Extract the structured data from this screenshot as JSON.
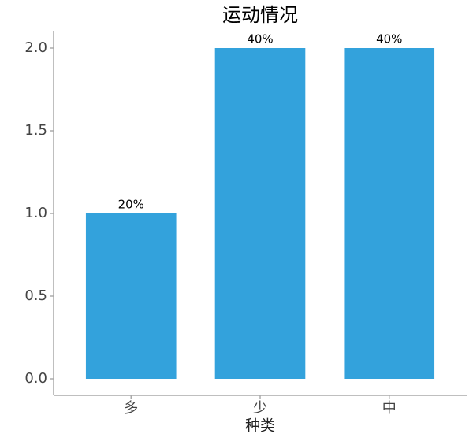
{
  "chart_data": {
    "type": "bar",
    "title": "运动情况",
    "x_label": "种类",
    "categories": [
      "多",
      "少",
      "中"
    ],
    "values": [
      1,
      2,
      2
    ],
    "share_labels": [
      "20%",
      "40%",
      "40%"
    ],
    "color": "#33a2dc",
    "ylim": [
      -0.1,
      2.1
    ],
    "yticks": [
      {
        "value": 0,
        "label": "0.0"
      },
      0.5,
      {
        "value": 1,
        "label": "1.0"
      },
      1.5,
      {
        "value": 2,
        "label": "2.0"
      }
    ],
    "grid": false
  }
}
